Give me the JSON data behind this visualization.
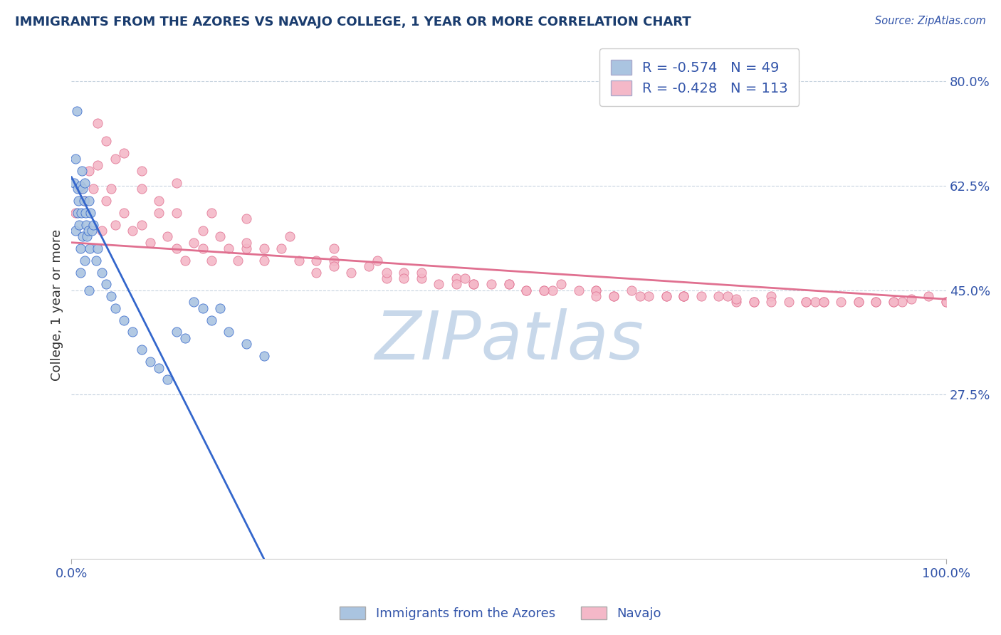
{
  "title": "IMMIGRANTS FROM THE AZORES VS NAVAJO COLLEGE, 1 YEAR OR MORE CORRELATION CHART",
  "source_text": "Source: ZipAtlas.com",
  "ylabel": "College, 1 year or more",
  "watermark": "ZIPatlas",
  "legend_1_label": "Immigrants from the Azores",
  "legend_2_label": "Navajo",
  "R1": -0.574,
  "N1": 49,
  "R2": -0.428,
  "N2": 113,
  "color_blue": "#aac4e0",
  "color_pink": "#f4b8c8",
  "line_color_blue": "#3366cc",
  "line_color_pink": "#e07090",
  "title_color": "#1a3c6e",
  "axis_label_color": "#3355aa",
  "watermark_color": "#c8d8ea",
  "background_color": "#ffffff",
  "grid_color": "#c8d4e0",
  "xlim": [
    0,
    100
  ],
  "ylim": [
    0,
    85
  ],
  "yticks": [
    27.5,
    45.0,
    62.5,
    80.0
  ],
  "ytick_labels": [
    "27.5%",
    "45.0%",
    "62.5%",
    "80.0%"
  ],
  "xticks": [
    0,
    100
  ],
  "xtick_labels": [
    "0.0%",
    "100.0%"
  ],
  "blue_x": [
    0.3,
    0.5,
    0.5,
    0.7,
    0.7,
    0.8,
    0.9,
    1.0,
    1.0,
    1.1,
    1.2,
    1.3,
    1.3,
    1.4,
    1.5,
    1.5,
    1.6,
    1.7,
    1.8,
    1.9,
    2.0,
    2.1,
    2.2,
    2.3,
    2.5,
    2.8,
    3.0,
    3.5,
    4.0,
    4.5,
    5.0,
    6.0,
    7.0,
    8.0,
    9.0,
    10.0,
    11.0,
    12.0,
    13.0,
    14.0,
    15.0,
    16.0,
    17.0,
    18.0,
    20.0,
    22.0,
    0.6,
    1.0,
    2.0
  ],
  "blue_y": [
    63.0,
    67.0,
    55.0,
    62.0,
    58.0,
    60.0,
    56.0,
    62.5,
    52.0,
    58.0,
    65.0,
    62.0,
    54.0,
    60.0,
    63.0,
    50.0,
    58.0,
    56.0,
    54.0,
    55.0,
    60.0,
    52.0,
    58.0,
    55.0,
    56.0,
    50.0,
    52.0,
    48.0,
    46.0,
    44.0,
    42.0,
    40.0,
    38.0,
    35.0,
    33.0,
    32.0,
    30.0,
    38.0,
    37.0,
    43.0,
    42.0,
    40.0,
    42.0,
    38.0,
    36.0,
    34.0,
    75.0,
    48.0,
    45.0
  ],
  "pink_x": [
    0.5,
    1.0,
    1.5,
    2.0,
    2.5,
    3.0,
    3.5,
    4.0,
    4.5,
    5.0,
    6.0,
    7.0,
    8.0,
    9.0,
    10.0,
    11.0,
    12.0,
    13.0,
    14.0,
    15.0,
    16.0,
    17.0,
    18.0,
    19.0,
    20.0,
    22.0,
    24.0,
    26.0,
    28.0,
    30.0,
    32.0,
    34.0,
    36.0,
    38.0,
    40.0,
    42.0,
    44.0,
    46.0,
    48.0,
    50.0,
    52.0,
    54.0,
    56.0,
    58.0,
    60.0,
    62.0,
    64.0,
    66.0,
    68.0,
    70.0,
    72.0,
    74.0,
    76.0,
    78.0,
    80.0,
    82.0,
    84.0,
    86.0,
    88.0,
    90.0,
    92.0,
    94.0,
    96.0,
    98.0,
    4.0,
    6.0,
    8.0,
    10.0,
    12.0,
    16.0,
    20.0,
    25.0,
    30.0,
    35.0,
    40.0,
    45.0,
    50.0,
    55.0,
    60.0,
    65.0,
    70.0,
    75.0,
    80.0,
    85.0,
    90.0,
    95.0,
    100.0,
    3.0,
    8.0,
    15.0,
    22.0,
    30.0,
    38.0,
    46.0,
    54.0,
    62.0,
    70.0,
    78.0,
    86.0,
    94.0,
    5.0,
    12.0,
    20.0,
    28.0,
    36.0,
    44.0,
    52.0,
    60.0,
    68.0,
    76.0,
    84.0,
    92.0,
    100.0
  ],
  "pink_y": [
    58.0,
    62.0,
    60.0,
    65.0,
    62.0,
    66.0,
    55.0,
    60.0,
    62.0,
    56.0,
    58.0,
    55.0,
    56.0,
    53.0,
    58.0,
    54.0,
    52.0,
    50.0,
    53.0,
    52.0,
    50.0,
    54.0,
    52.0,
    50.0,
    52.0,
    50.0,
    52.0,
    50.0,
    48.0,
    50.0,
    48.0,
    49.0,
    47.0,
    48.0,
    47.0,
    46.0,
    47.0,
    46.0,
    46.0,
    46.0,
    45.0,
    45.0,
    46.0,
    45.0,
    45.0,
    44.0,
    45.0,
    44.0,
    44.0,
    44.0,
    44.0,
    44.0,
    43.0,
    43.0,
    44.0,
    43.0,
    43.0,
    43.0,
    43.0,
    43.0,
    43.0,
    43.0,
    43.5,
    44.0,
    70.0,
    68.0,
    65.0,
    60.0,
    63.0,
    58.0,
    57.0,
    54.0,
    52.0,
    50.0,
    48.0,
    47.0,
    46.0,
    45.0,
    45.0,
    44.0,
    44.0,
    44.0,
    43.0,
    43.0,
    43.0,
    43.0,
    43.0,
    73.0,
    62.0,
    55.0,
    52.0,
    49.0,
    47.0,
    46.0,
    45.0,
    44.0,
    44.0,
    43.0,
    43.0,
    43.0,
    67.0,
    58.0,
    53.0,
    50.0,
    48.0,
    46.0,
    45.0,
    44.0,
    44.0,
    43.5,
    43.0,
    43.0,
    43.0
  ],
  "blue_trend_x0": 0,
  "blue_trend_y0": 64.0,
  "blue_trend_x1": 22,
  "blue_trend_y1": 0,
  "pink_trend_x0": 0,
  "pink_trend_y0": 53.0,
  "pink_trend_x1": 100,
  "pink_trend_y1": 43.5
}
